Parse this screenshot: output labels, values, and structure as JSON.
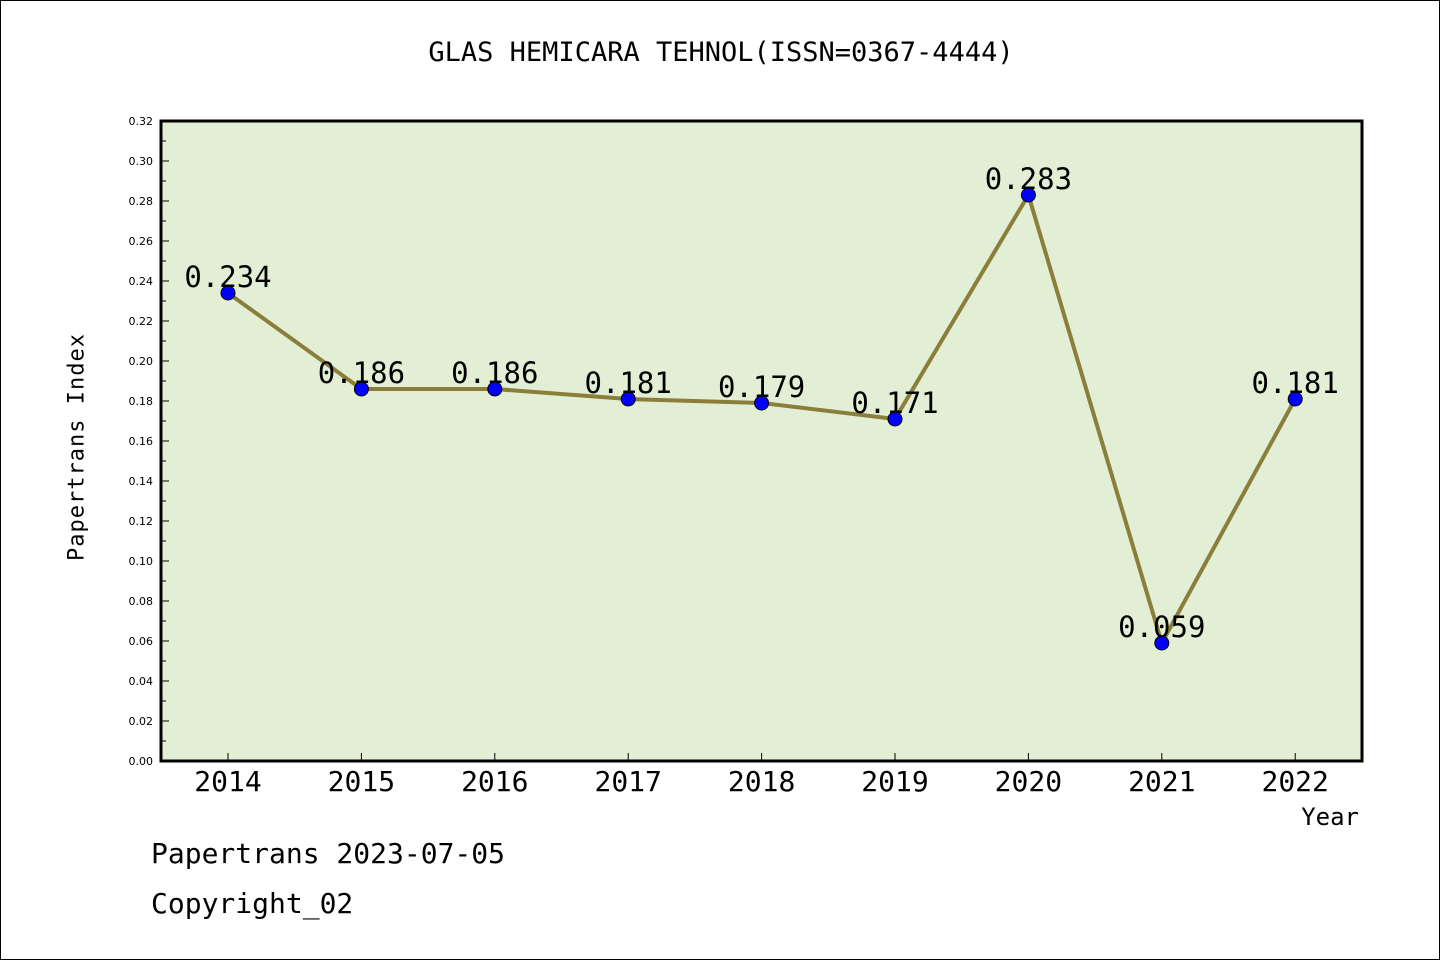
{
  "chart_data": {
    "type": "line",
    "title": "GLAS HEMICARA TEHNOL(ISSN=0367-4444)",
    "xlabel": "Year",
    "ylabel": "Papertrans Index",
    "categories": [
      "2014",
      "2015",
      "2016",
      "2017",
      "2018",
      "2019",
      "2020",
      "2021",
      "2022"
    ],
    "values": [
      0.234,
      0.186,
      0.186,
      0.181,
      0.179,
      0.171,
      0.283,
      0.059,
      0.181
    ],
    "data_labels": [
      "0.234",
      "0.186",
      "0.186",
      "0.181",
      "0.179",
      "0.171",
      "0.283",
      "0.059",
      "0.181"
    ],
    "ylim": [
      0,
      0.32
    ],
    "yticks": [
      "0.00",
      "0.02",
      "0.04",
      "0.06",
      "0.08",
      "0.10",
      "0.12",
      "0.14",
      "0.16",
      "0.18",
      "0.20",
      "0.22",
      "0.24",
      "0.26",
      "0.28",
      "0.30",
      "0.32"
    ],
    "grid": false,
    "colors": {
      "plot_background": "#e2efd4",
      "line": "#8b7d3a",
      "marker": "#0000ff"
    }
  },
  "footer": {
    "line1": "Papertrans 2023-07-05",
    "line2": "Copyright_02"
  }
}
